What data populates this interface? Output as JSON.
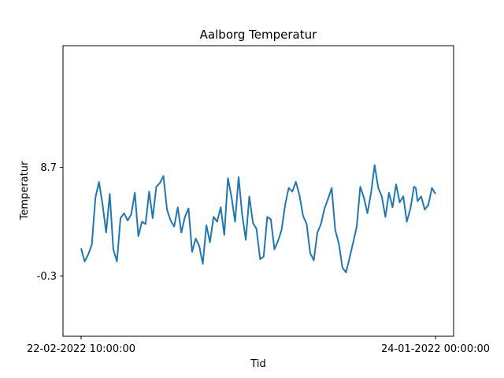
{
  "chart_data": {
    "type": "line",
    "title": "Aalborg Temperatur",
    "xlabel": "Tid",
    "ylabel": "Temperatur",
    "x_tick_labels": [
      "22-02-2022 10:00:00",
      "24-01-2022 00:00:00"
    ],
    "y_tick_labels": [
      "8.7",
      "-0.3"
    ],
    "y_ticks": [
      8.7,
      -0.3
    ],
    "ylim": [
      -5.3,
      18.8
    ],
    "x_index_range": [
      0,
      99
    ],
    "grid": false,
    "legend": "none",
    "series": [
      {
        "color": "#1f77b4",
        "x": [
          0,
          1,
          2,
          3,
          4,
          5,
          6,
          7,
          8,
          9,
          10,
          11,
          12,
          13,
          14,
          15,
          16,
          17,
          18,
          19,
          20,
          21,
          22,
          23,
          24,
          25,
          26,
          27,
          28,
          29,
          30,
          31,
          32,
          33,
          34,
          35,
          36,
          37,
          38,
          39,
          40,
          41,
          42,
          43,
          44,
          45,
          46,
          47,
          48,
          49,
          50,
          51,
          52,
          53,
          54,
          55,
          56,
          57,
          58,
          59,
          60,
          61,
          62,
          63,
          64,
          65,
          66,
          67,
          68,
          69,
          70,
          71,
          72,
          73,
          74,
          75,
          76,
          77,
          78,
          79,
          80,
          81,
          82,
          83,
          84,
          85,
          86,
          87,
          88,
          89,
          90,
          91,
          92,
          93,
          93.5,
          94,
          95,
          96,
          97,
          98,
          99
        ],
        "y": [
          2.0,
          0.9,
          1.5,
          2.3,
          6.2,
          7.5,
          5.6,
          3.3,
          6.5,
          1.9,
          0.9,
          4.5,
          4.9,
          4.3,
          4.8,
          6.6,
          3.0,
          4.2,
          4.0,
          6.7,
          4.5,
          7.1,
          7.4,
          8.0,
          5.2,
          4.3,
          3.8,
          5.4,
          3.3,
          4.6,
          5.3,
          1.7,
          2.8,
          2.2,
          0.7,
          3.9,
          2.5,
          4.6,
          4.2,
          5.4,
          3.1,
          7.8,
          6.3,
          4.2,
          7.9,
          4.8,
          2.7,
          6.3,
          4.1,
          3.6,
          1.1,
          1.3,
          4.6,
          4.4,
          1.9,
          2.6,
          3.5,
          5.6,
          7.0,
          6.7,
          7.5,
          6.4,
          4.7,
          4.0,
          1.6,
          1.0,
          3.3,
          4.0,
          5.3,
          6.1,
          7.0,
          3.5,
          2.4,
          0.4,
          0.0,
          1.2,
          2.5,
          3.8,
          7.1,
          6.2,
          4.9,
          6.6,
          8.9,
          7.0,
          6.3,
          4.6,
          6.6,
          5.4,
          7.3,
          5.8,
          6.3,
          4.2,
          5.3,
          7.1,
          7.0,
          5.9,
          6.3,
          5.2,
          5.6,
          7.0,
          6.5
        ]
      }
    ]
  }
}
